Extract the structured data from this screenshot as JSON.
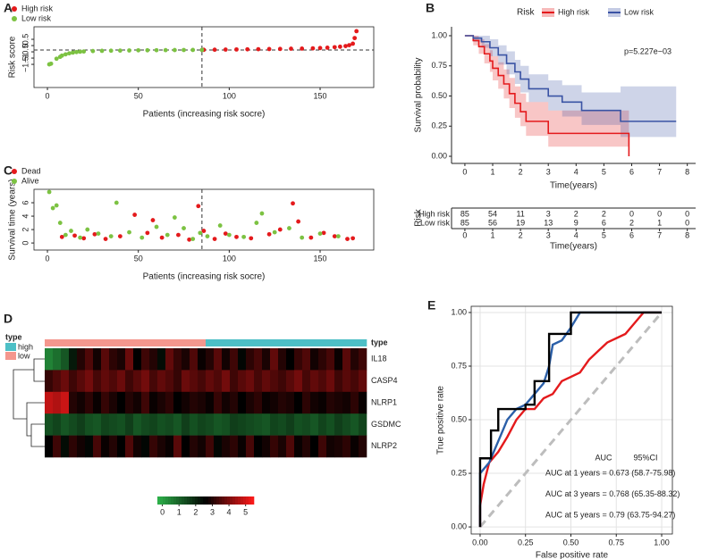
{
  "chart_data": [
    {
      "type": "scatter",
      "panel_label": "A",
      "xlabel": "Patients (increasing risk socre)",
      "ylabel": "Risk score",
      "xlim": [
        -7.4,
        179.5
      ],
      "ylim": [
        -3.35,
        1.5
      ],
      "xticks": [
        0,
        50,
        100,
        150
      ],
      "yticks": [
        0.5,
        0,
        {
          "value": -0.5,
          "label": "−0.5"
        },
        {
          "value": -1,
          "label": "−1"
        },
        {
          "value": -1.5,
          "label": "−1.5"
        }
      ],
      "reference_lines": {
        "x": 85,
        "y": -0.35
      },
      "series": [
        {
          "name": "High risk",
          "color": "#e41a1c",
          "x": [
            86,
            92,
            98,
            104,
            110,
            116,
            122,
            128,
            134,
            140,
            146,
            150,
            154,
            158,
            161,
            164,
            166,
            168,
            169,
            170
          ],
          "values": [
            -0.34,
            -0.33,
            -0.32,
            -0.31,
            -0.3,
            -0.29,
            -0.28,
            -0.27,
            -0.25,
            -0.24,
            -0.22,
            -0.2,
            -0.17,
            -0.13,
            -0.09,
            -0.04,
            0.03,
            0.15,
            0.6,
            1.15
          ]
        },
        {
          "name": "Low risk",
          "color": "#7cc242",
          "x": [
            1,
            2,
            5,
            7,
            8,
            10,
            12,
            14,
            16,
            18,
            20,
            25,
            30,
            35,
            40,
            45,
            50,
            55,
            60,
            65,
            70,
            75,
            80,
            85
          ],
          "values": [
            -1.5,
            -1.45,
            -1.05,
            -0.9,
            -0.8,
            -0.7,
            -0.62,
            -0.56,
            -0.52,
            -0.49,
            -0.47,
            -0.44,
            -0.42,
            -0.41,
            -0.4,
            -0.39,
            -0.38,
            -0.375,
            -0.37,
            -0.365,
            -0.36,
            -0.355,
            -0.35,
            -0.345
          ]
        }
      ]
    },
    {
      "type": "survival",
      "panel_label": "B",
      "legend_title": "Risk",
      "annotation": "p=5.227e−03",
      "xlabel": "Time(years)",
      "ylabel": "Survival probability",
      "xlim": [
        -0.48,
        8.3
      ],
      "ylim": [
        -0.059,
        1.074
      ],
      "xticks": [
        0,
        1,
        2,
        3,
        4,
        5,
        6,
        7,
        8
      ],
      "yticks": [
        {
          "value": 0,
          "label": "0.00"
        },
        {
          "value": 0.25,
          "label": "0.25"
        },
        {
          "value": 0.5,
          "label": "0.50"
        },
        {
          "value": 0.75,
          "label": "0.75"
        },
        {
          "value": 1,
          "label": "1.00"
        }
      ],
      "series": [
        {
          "name": "High risk",
          "color": "#e41a1c",
          "x": [
            0,
            0.3,
            0.5,
            0.7,
            0.9,
            1.0,
            1.2,
            1.4,
            1.6,
            1.8,
            2.0,
            2.2,
            3.0,
            5.9
          ],
          "values": [
            1,
            0.96,
            0.91,
            0.85,
            0.79,
            0.73,
            0.67,
            0.6,
            0.52,
            0.44,
            0.37,
            0.29,
            0.19,
            0
          ],
          "lower": [
            1,
            0.92,
            0.85,
            0.77,
            0.7,
            0.63,
            0.56,
            0.48,
            0.4,
            0.32,
            0.25,
            0.17,
            0.08,
            0
          ],
          "upper": [
            1,
            1,
            0.97,
            0.93,
            0.88,
            0.83,
            0.78,
            0.72,
            0.65,
            0.58,
            0.52,
            0.45,
            0.38,
            0.38
          ]
        },
        {
          "name": "Low risk",
          "color": "#3a53a4",
          "x": [
            0,
            0.3,
            0.6,
            0.9,
            1.2,
            1.5,
            1.8,
            2.0,
            2.3,
            3.0,
            3.5,
            4.2,
            5.6,
            7.6
          ],
          "values": [
            1,
            0.98,
            0.95,
            0.9,
            0.84,
            0.77,
            0.7,
            0.64,
            0.56,
            0.5,
            0.45,
            0.38,
            0.29,
            0.29
          ],
          "lower": [
            1,
            0.95,
            0.9,
            0.83,
            0.76,
            0.68,
            0.6,
            0.53,
            0.45,
            0.38,
            0.33,
            0.26,
            0.16,
            0.16
          ],
          "upper": [
            1,
            1,
            1,
            0.97,
            0.92,
            0.87,
            0.8,
            0.75,
            0.68,
            0.63,
            0.59,
            0.53,
            0.58,
            0.58
          ]
        }
      ],
      "risk_table": {
        "title": "Risk",
        "xlabel": "Time(years)",
        "xticks": [
          0,
          1,
          2,
          3,
          4,
          5,
          6,
          7,
          8
        ],
        "rows": [
          {
            "name": "High risk",
            "color": "#e41a1c",
            "values": [
              85,
              54,
              11,
              3,
              2,
              2,
              0,
              0,
              0
            ]
          },
          {
            "name": "Low risk",
            "color": "#3a53a4",
            "values": [
              85,
              56,
              19,
              13,
              9,
              6,
              2,
              1,
              0
            ]
          }
        ]
      }
    },
    {
      "type": "scatter",
      "panel_label": "C",
      "xlabel": "Patients (increasing risk socre)",
      "ylabel": "Survival time (years)",
      "xlim": [
        -7.4,
        179.5
      ],
      "ylim": [
        -1.05,
        8
      ],
      "xticks": [
        0,
        50,
        100,
        150
      ],
      "yticks": [
        0,
        2,
        4,
        6
      ],
      "reference_lines": {
        "x": 85
      },
      "series": [
        {
          "name": "Dead",
          "color": "#e41a1c",
          "x": [
            8,
            15,
            20,
            26,
            32,
            40,
            48,
            55,
            58,
            63,
            72,
            78,
            83,
            86,
            92,
            98,
            104,
            112,
            122,
            128,
            135,
            138,
            145,
            152,
            158,
            165,
            168
          ],
          "values": [
            0.9,
            1.1,
            0.7,
            1.3,
            0.6,
            1.0,
            4.2,
            1.5,
            3.4,
            0.8,
            1.2,
            0.5,
            5.5,
            1.8,
            0.6,
            1.4,
            0.9,
            0.7,
            1.3,
            2.0,
            5.9,
            3.2,
            0.8,
            1.5,
            1.0,
            0.6,
            0.7
          ]
        },
        {
          "name": "Alive",
          "color": "#7cc242",
          "x": [
            1,
            3,
            5,
            7,
            10,
            13,
            18,
            22,
            28,
            35,
            38,
            45,
            52,
            60,
            66,
            70,
            75,
            80,
            84,
            88,
            95,
            100,
            108,
            115,
            118,
            125,
            133,
            140,
            150,
            160
          ],
          "values": [
            7.6,
            5.2,
            5.6,
            3.0,
            1.2,
            1.8,
            0.8,
            2.0,
            1.4,
            1.0,
            6.0,
            1.6,
            0.8,
            2.4,
            1.2,
            3.8,
            2.2,
            0.6,
            1.5,
            1.0,
            2.6,
            1.2,
            0.9,
            3.0,
            4.4,
            1.6,
            2.2,
            0.8,
            1.4,
            1.0
          ]
        }
      ]
    },
    {
      "type": "heatmap",
      "panel_label": "D",
      "rows": [
        "IL18",
        "CASP4",
        "NLRP1",
        "GSDMC",
        "NLRP2"
      ],
      "clim": [
        -0.3,
        5.5
      ],
      "colors": [
        "#2db34a",
        "#000000",
        "#ff1a1a"
      ],
      "cticks": [
        0,
        1,
        2,
        3,
        4,
        5
      ],
      "annotation": {
        "title": "type",
        "categories": [
          "high",
          "low"
        ],
        "colors": [
          "#4dbfc6",
          "#f4978e"
        ],
        "column_type": [
          "low",
          "low",
          "low",
          "low",
          "low",
          "low",
          "low",
          "low",
          "low",
          "low",
          "low",
          "low",
          "low",
          "low",
          "low",
          "low",
          "low",
          "low",
          "low",
          "low",
          "high",
          "high",
          "high",
          "high",
          "high",
          "high",
          "high",
          "high",
          "high",
          "high",
          "high",
          "high",
          "high",
          "high",
          "high",
          "high",
          "high",
          "high",
          "high",
          "high"
        ]
      },
      "values": [
        [
          0.5,
          0.8,
          1.2,
          2.2,
          3.0,
          3.5,
          2.8,
          3.6,
          3.1,
          2.9,
          3.8,
          2.6,
          3.3,
          3.0,
          2.4,
          3.7,
          3.2,
          2.9,
          3.5,
          2.7,
          3.0,
          3.6,
          2.8,
          3.3,
          2.5,
          3.1,
          3.4,
          2.9,
          3.7,
          3.0,
          2.6,
          3.2,
          3.5,
          2.8,
          3.1,
          3.4,
          2.7,
          3.6,
          3.0,
          3.3
        ],
        [
          3.2,
          3.5,
          3.8,
          3.3,
          3.6,
          3.9,
          3.4,
          3.7,
          3.5,
          3.8,
          3.3,
          3.6,
          3.9,
          3.4,
          3.7,
          3.5,
          3.2,
          3.8,
          3.6,
          3.4,
          3.7,
          3.5,
          3.9,
          3.3,
          3.6,
          3.8,
          3.4,
          3.7,
          3.5,
          3.3,
          3.6,
          3.9,
          3.4,
          3.7,
          3.5,
          3.8,
          3.3,
          3.6,
          3.4,
          3.7
        ],
        [
          4.8,
          4.6,
          4.9,
          3.0,
          2.8,
          3.1,
          2.7,
          3.2,
          2.9,
          2.6,
          3.0,
          2.8,
          3.3,
          2.7,
          2.9,
          3.1,
          2.6,
          2.8,
          3.0,
          2.9,
          2.7,
          3.2,
          2.8,
          3.0,
          2.6,
          2.9,
          3.1,
          2.7,
          2.8,
          3.0,
          2.9,
          2.6,
          3.1,
          2.8,
          2.7,
          3.0,
          2.9,
          2.8,
          3.1,
          2.7
        ],
        [
          1.3,
          1.5,
          1.2,
          1.4,
          1.6,
          1.3,
          1.2,
          1.5,
          1.4,
          1.3,
          1.6,
          1.2,
          1.4,
          1.5,
          1.3,
          1.4,
          1.2,
          1.6,
          1.3,
          1.5,
          1.4,
          1.2,
          1.3,
          1.6,
          1.5,
          1.4,
          1.3,
          1.2,
          1.5,
          1.4,
          1.6,
          1.3,
          1.4,
          1.2,
          1.5,
          1.3,
          1.6,
          1.4,
          1.2,
          1.5
        ],
        [
          2.6,
          3.3,
          2.4,
          3.1,
          2.8,
          2.5,
          3.4,
          2.7,
          3.0,
          2.6,
          3.5,
          2.8,
          2.5,
          3.2,
          2.9,
          2.7,
          3.6,
          2.6,
          3.0,
          2.8,
          3.3,
          2.5,
          2.9,
          3.1,
          2.7,
          3.4,
          2.6,
          2.8,
          3.2,
          2.9,
          3.5,
          2.7,
          3.0,
          2.6,
          3.3,
          2.8,
          2.9,
          3.1,
          2.7,
          3.0
        ]
      ]
    },
    {
      "type": "line",
      "panel_label": "E",
      "xlabel": "False positive rate",
      "ylabel": "True positive rate",
      "xlim": [
        -0.049,
        1.059
      ],
      "ylim": [
        -0.033,
        1.029
      ],
      "grid": true,
      "diagonal": true,
      "xticks": [
        {
          "value": 0,
          "label": "0.00"
        },
        {
          "value": 0.25,
          "label": "0.25"
        },
        {
          "value": 0.5,
          "label": "0.50"
        },
        {
          "value": 0.75,
          "label": "0.75"
        },
        {
          "value": 1,
          "label": "1.00"
        }
      ],
      "yticks": [
        {
          "value": 0,
          "label": "0.00"
        },
        {
          "value": 0.25,
          "label": "0.25"
        },
        {
          "value": 0.5,
          "label": "0.50"
        },
        {
          "value": 0.75,
          "label": "0.75"
        },
        {
          "value": 1,
          "label": "1.00"
        }
      ],
      "auc_header": [
        "AUC",
        "95%CI"
      ],
      "series": [
        {
          "label": "AUC at 1 years = 0.673  (58.7-75.98)",
          "color": "#e41a1c",
          "x": [
            0,
            0,
            0.02,
            0.05,
            0.1,
            0.15,
            0.2,
            0.25,
            0.3,
            0.35,
            0.4,
            0.45,
            0.55,
            0.6,
            0.65,
            0.7,
            0.8,
            0.85,
            0.9,
            1
          ],
          "values": [
            0,
            0.1,
            0.2,
            0.3,
            0.35,
            0.42,
            0.5,
            0.55,
            0.55,
            0.6,
            0.62,
            0.68,
            0.72,
            0.78,
            0.82,
            0.86,
            0.9,
            0.95,
            1,
            1
          ]
        },
        {
          "label": "AUC at 3 years = 0.768  (65.35-88.32)",
          "color": "#2b5fa8",
          "x": [
            0,
            0,
            0.05,
            0.1,
            0.15,
            0.2,
            0.25,
            0.3,
            0.35,
            0.38,
            0.4,
            0.45,
            0.5,
            0.55,
            1
          ],
          "values": [
            0,
            0.25,
            0.3,
            0.4,
            0.5,
            0.55,
            0.57,
            0.62,
            0.67,
            0.75,
            0.85,
            0.87,
            0.93,
            1,
            1
          ]
        },
        {
          "label": "AUC at 5 years = 0.79  (63.75-94.27)",
          "color": "#000000",
          "x": [
            0,
            0,
            0.06,
            0.06,
            0.1,
            0.1,
            0.25,
            0.25,
            0.3,
            0.3,
            0.38,
            0.38,
            0.5,
            0.5,
            1
          ],
          "values": [
            0,
            0.32,
            0.32,
            0.45,
            0.45,
            0.55,
            0.55,
            0.57,
            0.57,
            0.68,
            0.68,
            0.9,
            0.9,
            1,
            1
          ]
        }
      ]
    }
  ]
}
